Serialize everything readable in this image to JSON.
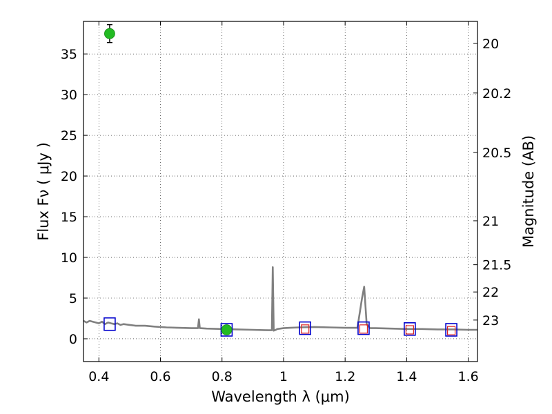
{
  "chart_data": {
    "type": "scatter",
    "xlabel": "Wavelength  λ (μm)",
    "ylabel": "Flux  Fν  ( μJy )",
    "y2label": "Magnitude (AB)",
    "xlim": [
      0.35,
      1.63
    ],
    "ylim": [
      -2.8,
      39.0
    ],
    "grid": true,
    "x_ticks": [
      0.4,
      0.6,
      0.8,
      1.0,
      1.2,
      1.4,
      1.6
    ],
    "x_tick_labels": [
      "0.4",
      "0.6",
      "0.8",
      "1",
      "1.2",
      "1.4",
      "1.6"
    ],
    "y_ticks": [
      0,
      5,
      10,
      15,
      20,
      25,
      30,
      35
    ],
    "y_tick_labels": [
      "0",
      "5",
      "10",
      "15",
      "20",
      "25",
      "30",
      "35"
    ],
    "y2_ticks": [
      {
        "label": "20",
        "flux": 36.3
      },
      {
        "label": "20.2",
        "flux": 30.2
      },
      {
        "label": "20.5",
        "flux": 22.9
      },
      {
        "label": "21",
        "flux": 14.5
      },
      {
        "label": "21.5",
        "flux": 9.1
      },
      {
        "label": "22",
        "flux": 5.75
      },
      {
        "label": "23",
        "flux": 2.3
      }
    ],
    "spectrum": {
      "name": "model spectrum",
      "color": "#808080",
      "x": [
        0.35,
        0.36,
        0.37,
        0.38,
        0.39,
        0.4,
        0.41,
        0.42,
        0.43,
        0.44,
        0.45,
        0.46,
        0.47,
        0.48,
        0.5,
        0.52,
        0.55,
        0.58,
        0.62,
        0.66,
        0.7,
        0.722,
        0.725,
        0.728,
        0.75,
        0.8,
        0.85,
        0.9,
        0.95,
        0.962,
        0.965,
        0.968,
        0.975,
        0.98,
        1.0,
        1.02,
        1.05,
        1.1,
        1.15,
        1.2,
        1.24,
        1.255,
        1.262,
        1.27,
        1.28,
        1.3,
        1.35,
        1.4,
        1.45,
        1.5,
        1.55,
        1.6,
        1.63
      ],
      "y": [
        2.2,
        2.0,
        2.2,
        2.1,
        2.0,
        1.9,
        2.1,
        1.8,
        2.0,
        1.9,
        1.8,
        1.9,
        1.7,
        1.8,
        1.7,
        1.6,
        1.6,
        1.5,
        1.4,
        1.35,
        1.3,
        1.3,
        2.4,
        1.3,
        1.25,
        1.2,
        1.15,
        1.1,
        1.05,
        1.05,
        8.8,
        1.0,
        1.1,
        1.2,
        1.3,
        1.35,
        1.4,
        1.45,
        1.4,
        1.35,
        1.35,
        5.0,
        6.4,
        1.8,
        1.3,
        1.3,
        1.25,
        1.2,
        1.2,
        1.15,
        1.15,
        1.1,
        1.1
      ]
    },
    "observed_points": {
      "name": "observed photometry",
      "color": "#22bb22",
      "points": [
        {
          "x": 0.435,
          "y": 37.5,
          "yerr": 1.1
        },
        {
          "x": 0.815,
          "y": 1.1,
          "yerr": 0.2
        }
      ]
    },
    "model_photometry": {
      "name": "model photometry",
      "color": "#0000cc",
      "points": [
        {
          "x": 0.435,
          "y": 1.8
        },
        {
          "x": 0.815,
          "y": 1.1
        },
        {
          "x": 1.07,
          "y": 1.3
        },
        {
          "x": 1.26,
          "y": 1.3
        },
        {
          "x": 1.41,
          "y": 1.2
        },
        {
          "x": 1.545,
          "y": 1.1
        }
      ]
    },
    "upper_limits": {
      "name": "upper limits",
      "color": "#dd2222",
      "points": [
        {
          "x": 1.07,
          "y": 1.2
        },
        {
          "x": 1.26,
          "y": 1.2
        },
        {
          "x": 1.41,
          "y": 1.1
        },
        {
          "x": 1.545,
          "y": 1.0
        }
      ]
    }
  }
}
